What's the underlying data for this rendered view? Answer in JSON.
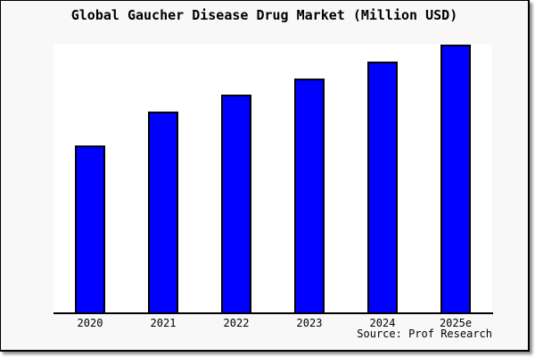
{
  "chart_data": {
    "type": "bar",
    "title": "Global Gaucher Disease Drug Market (Million USD)",
    "categories": [
      "2020",
      "2021",
      "2022",
      "2023",
      "2024",
      "2025e"
    ],
    "values": [
      62.5,
      75.0,
      81.25,
      87.5,
      93.75,
      100.0
    ],
    "values_unit": "percent of tallest bar (y-axis is unlabeled; bars proportional to 10:12:13:14:15:16)",
    "xlabel": "",
    "ylabel": "",
    "ylim": [
      0,
      100
    ],
    "grid": false,
    "legend": false,
    "source": "Source: Prof Research",
    "colors": {
      "bar_fill": "#0000ff",
      "bar_border": "#000000",
      "plot_bg": "#ffffff",
      "page_bg": "#f8f8f8",
      "axis": "#000000",
      "text": "#000000"
    }
  }
}
